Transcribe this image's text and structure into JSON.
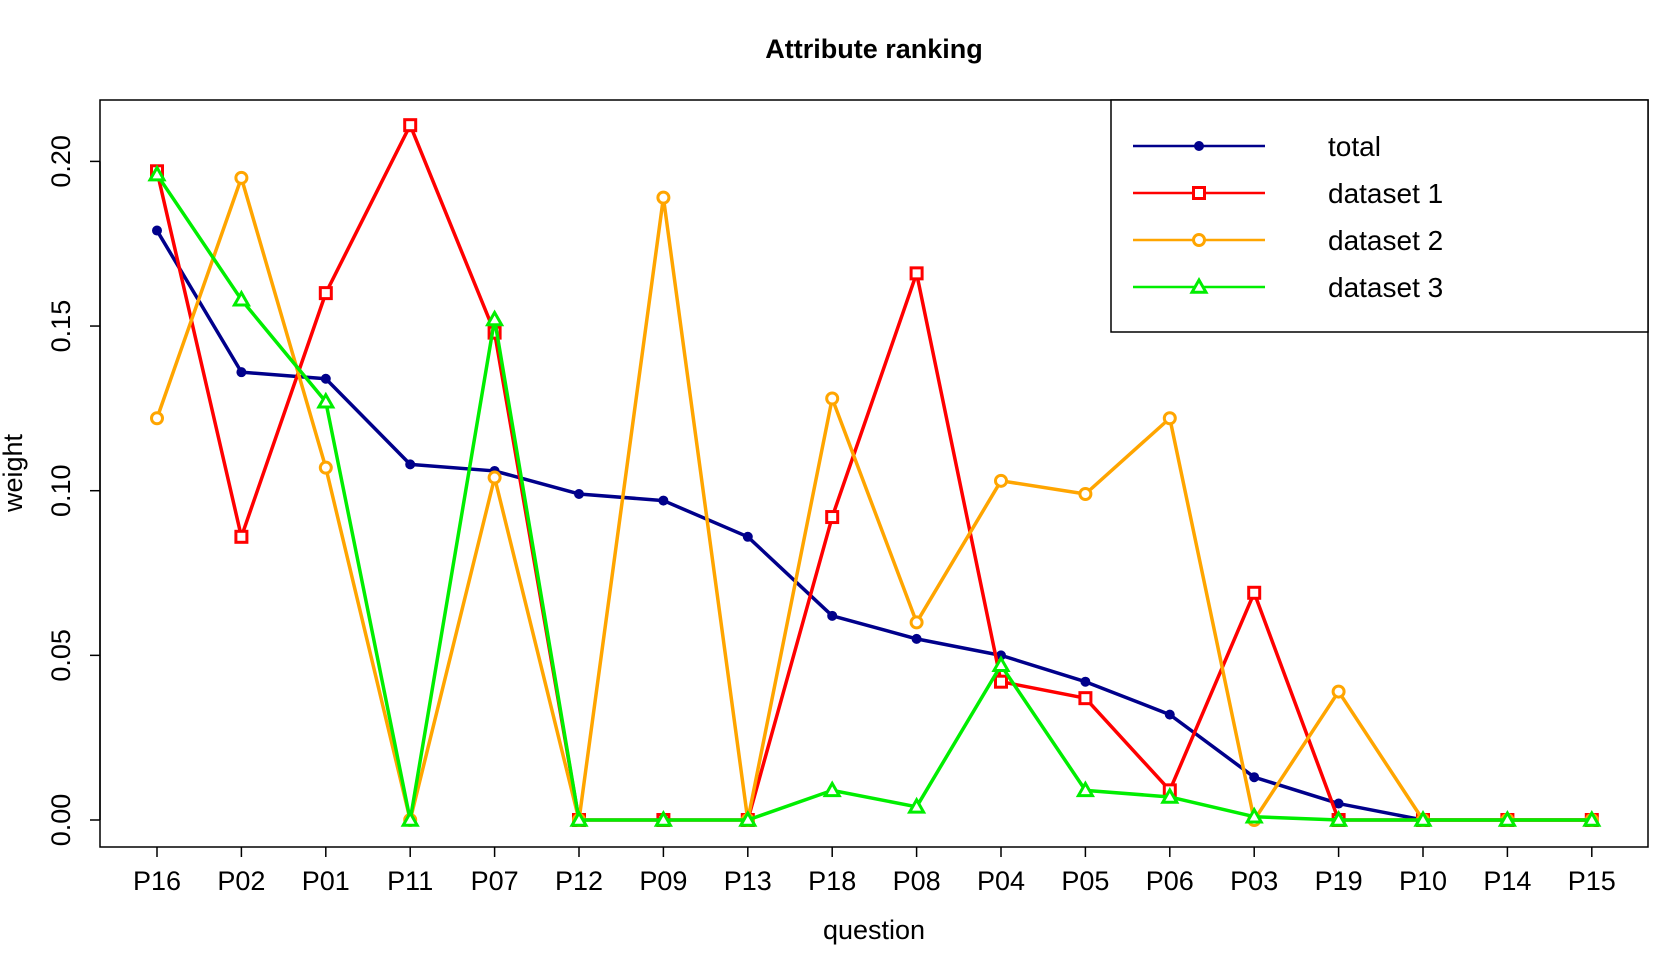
{
  "chart_data": {
    "type": "line",
    "title": "Attribute ranking",
    "xlabel": "question",
    "ylabel": "weight",
    "categories": [
      "P16",
      "P02",
      "P01",
      "P11",
      "P07",
      "P12",
      "P09",
      "P13",
      "P18",
      "P08",
      "P04",
      "P05",
      "P06",
      "P03",
      "P19",
      "P10",
      "P14",
      "P15"
    ],
    "ylim": [
      -0.008,
      0.22
    ],
    "yticks": [
      "0.00",
      "0.05",
      "0.10",
      "0.15",
      "0.20"
    ],
    "grid": false,
    "legend_position": "top-right",
    "series": [
      {
        "name": "total",
        "color": "#00008b",
        "marker": "filled-circle",
        "values": [
          0.179,
          0.136,
          0.134,
          0.108,
          0.106,
          0.099,
          0.097,
          0.086,
          0.062,
          0.055,
          0.05,
          0.042,
          0.032,
          0.013,
          0.005,
          0.0,
          0.0,
          0.0
        ]
      },
      {
        "name": "dataset 1",
        "color": "#ff0000",
        "marker": "open-square",
        "values": [
          0.197,
          0.086,
          0.16,
          0.211,
          0.148,
          0.0,
          0.0,
          0.0,
          0.092,
          0.166,
          0.042,
          0.037,
          0.009,
          0.069,
          0.0,
          0.0,
          0.0,
          0.0
        ]
      },
      {
        "name": "dataset 2",
        "color": "#ffa500",
        "marker": "open-circle",
        "values": [
          0.122,
          0.195,
          0.107,
          0.0,
          0.104,
          0.0,
          0.189,
          0.0,
          0.128,
          0.06,
          0.103,
          0.099,
          0.122,
          0.0,
          0.039,
          0.0,
          0.0,
          0.0
        ]
      },
      {
        "name": "dataset 3",
        "color": "#00ee00",
        "marker": "open-triangle",
        "values": [
          0.196,
          0.158,
          0.127,
          0.0,
          0.152,
          0.0,
          0.0,
          0.0,
          0.009,
          0.004,
          0.047,
          0.009,
          0.007,
          0.001,
          0.0,
          0.0,
          0.0,
          0.0
        ]
      }
    ]
  }
}
